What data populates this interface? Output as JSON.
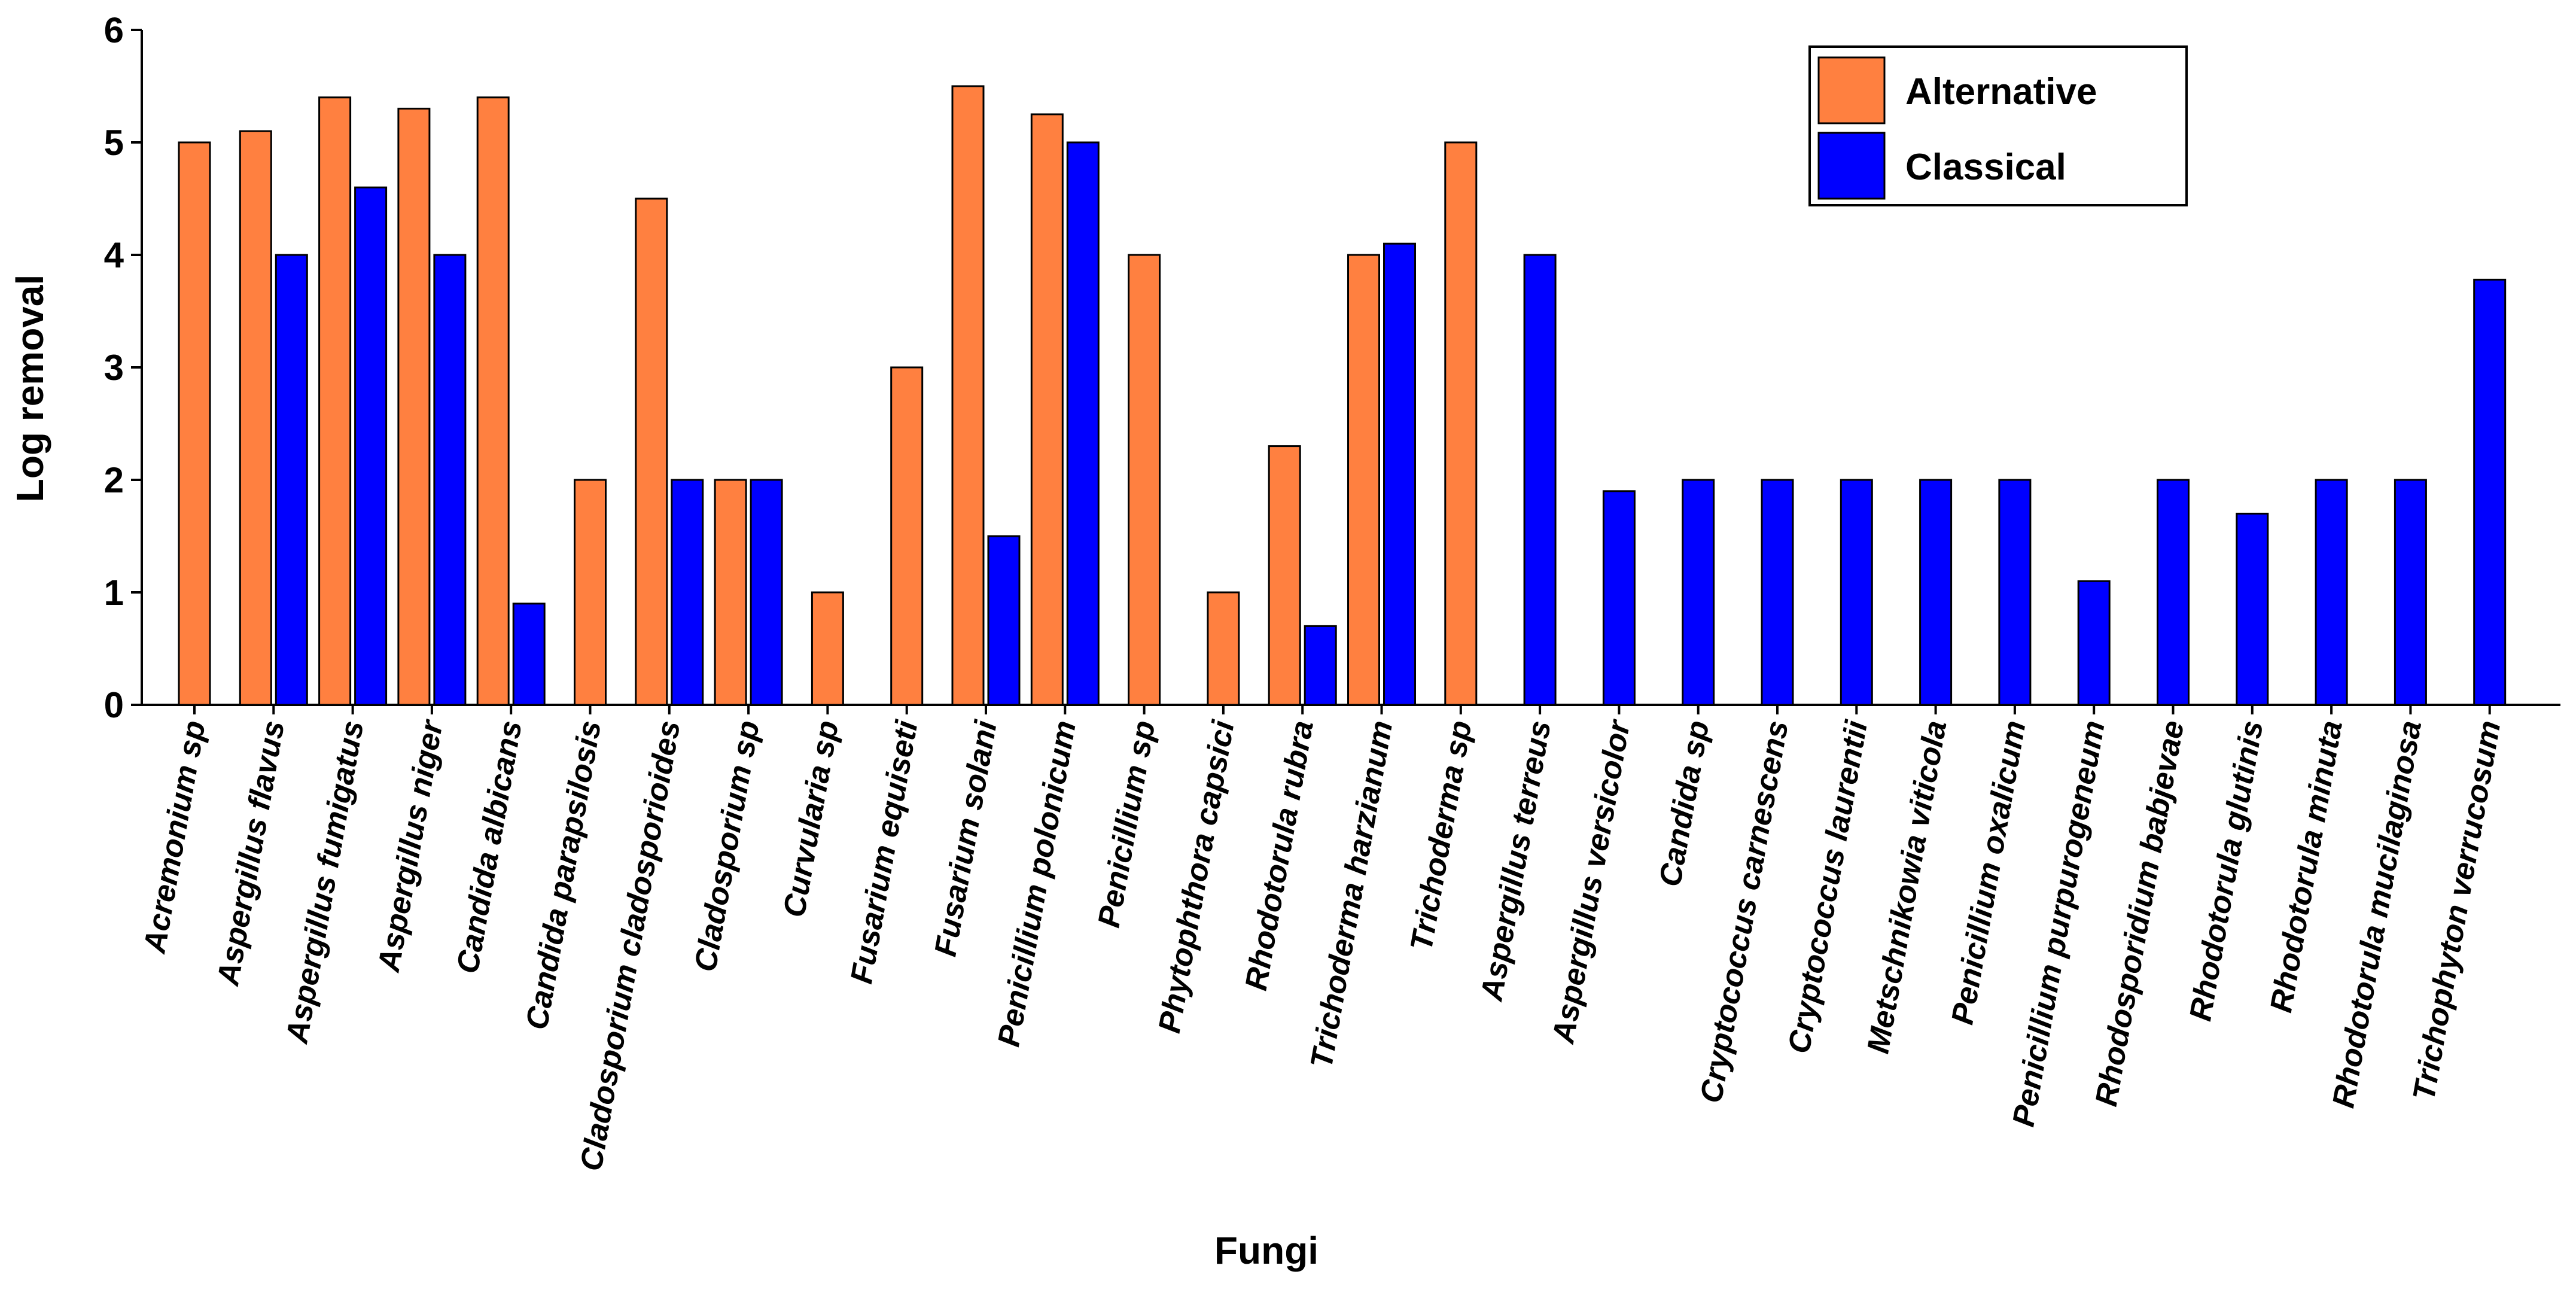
{
  "chart_data": {
    "type": "bar",
    "title": "",
    "xlabel": "Fungi",
    "ylabel": "Log removal",
    "ylim": [
      0,
      6
    ],
    "yticks": [
      "0",
      "1",
      "2",
      "3",
      "4",
      "5",
      "6"
    ],
    "grid": false,
    "legend_position": "top-right",
    "categories": [
      "Acremonium sp",
      "Aspergillus flavus",
      "Aspergillus fumigatus",
      "Aspergillus niger",
      "Candida albicans",
      "Candida parapsilosis",
      "Cladosporium cladosporioides",
      "Cladosporium sp",
      "Curvularia sp",
      "Fusarium equiseti",
      "Fusarium solani",
      "Penicillium polonicum",
      "Penicillium sp",
      "Phytophthora capsici",
      "Rhodotorula rubra",
      "Trichoderma harzianum",
      "Trichoderma sp",
      "Aspergillus terreus",
      "Aspergillus versicolor",
      "Candida sp",
      "Cryptococcus carnescens",
      "Cryptococcus laurentii",
      "Metschnikowia viticola",
      "Penicillium oxalicum",
      "Penicillium purpurogeneum",
      "Rhodosporidium babjevae",
      "Rhodotorula glutinis",
      "Rhodotorula minuta",
      "Rhodotorula mucilaginosa",
      "Trichophyton verrucosum"
    ],
    "series": [
      {
        "name": "Alternative",
        "color": "#FF8040",
        "values": [
          5.0,
          5.1,
          5.4,
          5.3,
          5.4,
          2.0,
          4.5,
          2.0,
          1.0,
          3.0,
          5.5,
          5.25,
          4.0,
          1.0,
          2.3,
          4.0,
          5.0,
          null,
          null,
          null,
          null,
          null,
          null,
          null,
          null,
          null,
          null,
          null,
          null,
          null
        ]
      },
      {
        "name": "Classical",
        "color": "#0000FF",
        "values": [
          null,
          4.0,
          4.6,
          4.0,
          0.9,
          null,
          2.0,
          2.0,
          null,
          null,
          1.5,
          5.0,
          null,
          null,
          0.7,
          4.1,
          null,
          4.0,
          1.9,
          2.0,
          2.0,
          2.0,
          2.0,
          2.0,
          1.1,
          2.0,
          1.7,
          2.0,
          2.0,
          3.78
        ]
      }
    ]
  }
}
